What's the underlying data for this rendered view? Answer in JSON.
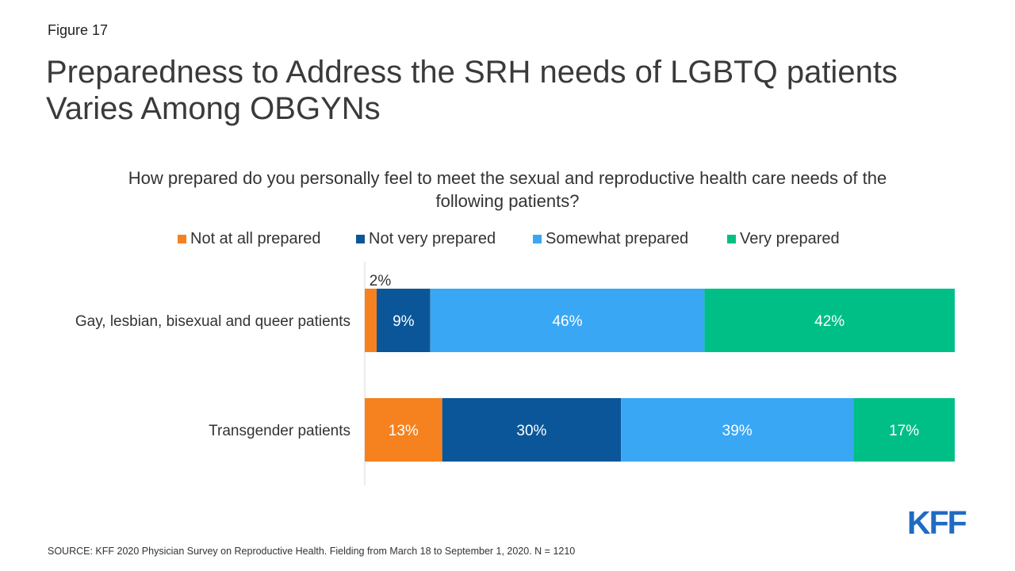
{
  "figure_label": "Figure 17",
  "source": "SOURCE: KFF 2020 Physician Survey on Reproductive Health. Fielding from March 18 to September 1, 2020. N = 1210",
  "logo_text": "KFF",
  "chart_data": {
    "type": "bar",
    "orientation": "horizontal",
    "stacked": true,
    "title": "Preparedness to Address the SRH needs of LGBTQ patients Varies Among OBGYNs",
    "subtitle": "How prepared do you personally feel to meet the sexual and reproductive health care needs of the following patients?",
    "legend_position": "top",
    "categories": [
      "Gay, lesbian, bisexual and queer patients",
      "Transgender patients"
    ],
    "series": [
      {
        "name": "Not at all prepared",
        "color": "#f5821f",
        "values": [
          2,
          13
        ],
        "labels": [
          "2%",
          "13%"
        ]
      },
      {
        "name": "Not very prepared",
        "color": "#0a5699",
        "values": [
          9,
          30
        ],
        "labels": [
          "9%",
          "30%"
        ]
      },
      {
        "name": "Somewhat prepared",
        "color": "#3aa7f5",
        "values": [
          46,
          39
        ],
        "labels": [
          "46%",
          "39%"
        ]
      },
      {
        "name": "Very prepared",
        "color": "#00bf86",
        "values": [
          42,
          17
        ],
        "labels": [
          "42%",
          "17%"
        ]
      }
    ],
    "xlim": [
      0,
      99
    ]
  }
}
